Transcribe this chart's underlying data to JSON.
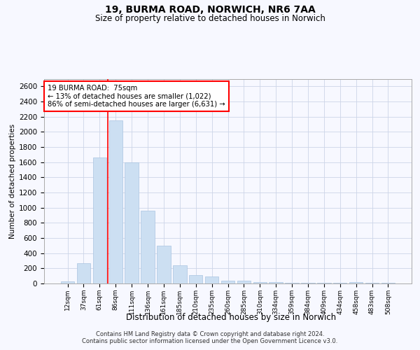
{
  "title_line1": "19, BURMA ROAD, NORWICH, NR6 7AA",
  "title_line2": "Size of property relative to detached houses in Norwich",
  "xlabel": "Distribution of detached houses by size in Norwich",
  "ylabel": "Number of detached properties",
  "categories": [
    "12sqm",
    "37sqm",
    "61sqm",
    "86sqm",
    "111sqm",
    "136sqm",
    "161sqm",
    "185sqm",
    "210sqm",
    "235sqm",
    "260sqm",
    "285sqm",
    "310sqm",
    "334sqm",
    "359sqm",
    "384sqm",
    "409sqm",
    "434sqm",
    "458sqm",
    "483sqm",
    "508sqm"
  ],
  "values": [
    30,
    270,
    1660,
    2150,
    1600,
    960,
    500,
    240,
    110,
    90,
    40,
    40,
    20,
    20,
    10,
    10,
    5,
    5,
    20,
    5,
    5
  ],
  "bar_color": "#ccdff2",
  "bar_edge_color": "#aac4e0",
  "vline_x_index": 2.5,
  "vline_color": "red",
  "annotation_text": "19 BURMA ROAD:  75sqm\n← 13% of detached houses are smaller (1,022)\n86% of semi-detached houses are larger (6,631) →",
  "annotation_box_color": "white",
  "annotation_box_edge_color": "red",
  "ylim": [
    0,
    2700
  ],
  "yticks": [
    0,
    200,
    400,
    600,
    800,
    1000,
    1200,
    1400,
    1600,
    1800,
    2000,
    2200,
    2400,
    2600
  ],
  "footer_line1": "Contains HM Land Registry data © Crown copyright and database right 2024.",
  "footer_line2": "Contains public sector information licensed under the Open Government Licence v3.0.",
  "bg_color": "#f7f8ff",
  "grid_color": "#cdd5e8"
}
